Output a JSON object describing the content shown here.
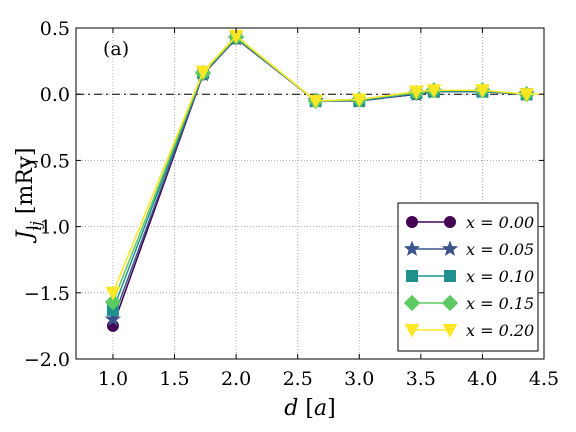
{
  "chart_data": {
    "type": "line",
    "panel_label": "(a)",
    "xlabel": "d [a]",
    "ylabel": "J_ij [mRy]",
    "xlim": [
      0.7,
      4.5
    ],
    "ylim": [
      -2.0,
      0.5
    ],
    "xticks": [
      "1.0",
      "1.5",
      "2.0",
      "2.5",
      "3.0",
      "3.5",
      "4.0",
      "4.5"
    ],
    "yticks": [
      "0.5",
      "0.0",
      "−0.5",
      "−1.0",
      "−1.5",
      "−2.0"
    ],
    "grid": true,
    "reference_line": 0.0,
    "legend_position": "lower-right",
    "x": [
      1.0,
      1.732,
      2.0,
      2.646,
      3.0,
      3.464,
      3.606,
      4.0,
      4.359,
      4.5
    ],
    "series": [
      {
        "name": "x = 0.00",
        "color": "#440154",
        "marker": "circle",
        "values": [
          -1.75,
          0.15,
          0.42,
          -0.05,
          -0.05,
          0.0,
          0.02,
          0.02,
          0.0,
          0.0
        ]
      },
      {
        "name": "x = 0.05",
        "color": "#3b528b",
        "marker": "star",
        "values": [
          -1.7,
          0.15,
          0.42,
          -0.05,
          -0.05,
          0.0,
          0.02,
          0.02,
          0.0,
          0.0
        ]
      },
      {
        "name": "x = 0.10",
        "color": "#21908d",
        "marker": "square",
        "values": [
          -1.63,
          0.16,
          0.43,
          -0.05,
          -0.05,
          0.01,
          0.02,
          0.02,
          0.0,
          0.0
        ]
      },
      {
        "name": "x = 0.15",
        "color": "#5dc963",
        "marker": "diamond",
        "values": [
          -1.57,
          0.16,
          0.43,
          -0.05,
          -0.04,
          0.01,
          0.03,
          0.03,
          0.0,
          0.0
        ]
      },
      {
        "name": "x = 0.20",
        "color": "#fde725",
        "marker": "triangle-down",
        "values": [
          -1.5,
          0.17,
          0.44,
          -0.05,
          -0.04,
          0.02,
          0.03,
          0.03,
          0.0,
          0.0
        ]
      }
    ]
  }
}
